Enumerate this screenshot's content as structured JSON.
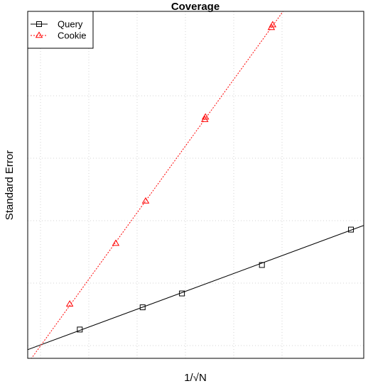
{
  "chart_data": {
    "type": "scatter",
    "title": "Coverage",
    "xlabel": "1/√N",
    "ylabel": "Standard Error",
    "xlim": [
      0,
      1
    ],
    "ylim": [
      0,
      1
    ],
    "tick_labels_shown": false,
    "grid": true,
    "grid_style": "dotted",
    "legend_position": "top-left",
    "series": [
      {
        "name": "Query",
        "color": "#000000",
        "marker": "square",
        "line_style": "solid",
        "points": [
          {
            "x": 0.155,
            "y": 0.083
          },
          {
            "x": 0.342,
            "y": 0.147
          },
          {
            "x": 0.459,
            "y": 0.187
          },
          {
            "x": 0.697,
            "y": 0.269
          },
          {
            "x": 0.962,
            "y": 0.371
          }
        ],
        "fit_line": {
          "x": [
            0.0,
            1.0
          ],
          "y": [
            0.025,
            0.383
          ]
        }
      },
      {
        "name": "Cookie",
        "color": "#ff0000",
        "marker": "triangle",
        "line_style": "dotted",
        "points": [
          {
            "x": 0.125,
            "y": 0.156
          },
          {
            "x": 0.262,
            "y": 0.331
          },
          {
            "x": 0.351,
            "y": 0.453
          },
          {
            "x": 0.527,
            "y": 0.688
          },
          {
            "x": 0.529,
            "y": 0.695
          },
          {
            "x": 0.725,
            "y": 0.953
          },
          {
            "x": 0.729,
            "y": 0.961
          }
        ],
        "fit_line": {
          "x": [
            0.0,
            0.76
          ],
          "y": [
            -0.015,
            1.0
          ]
        }
      }
    ]
  }
}
